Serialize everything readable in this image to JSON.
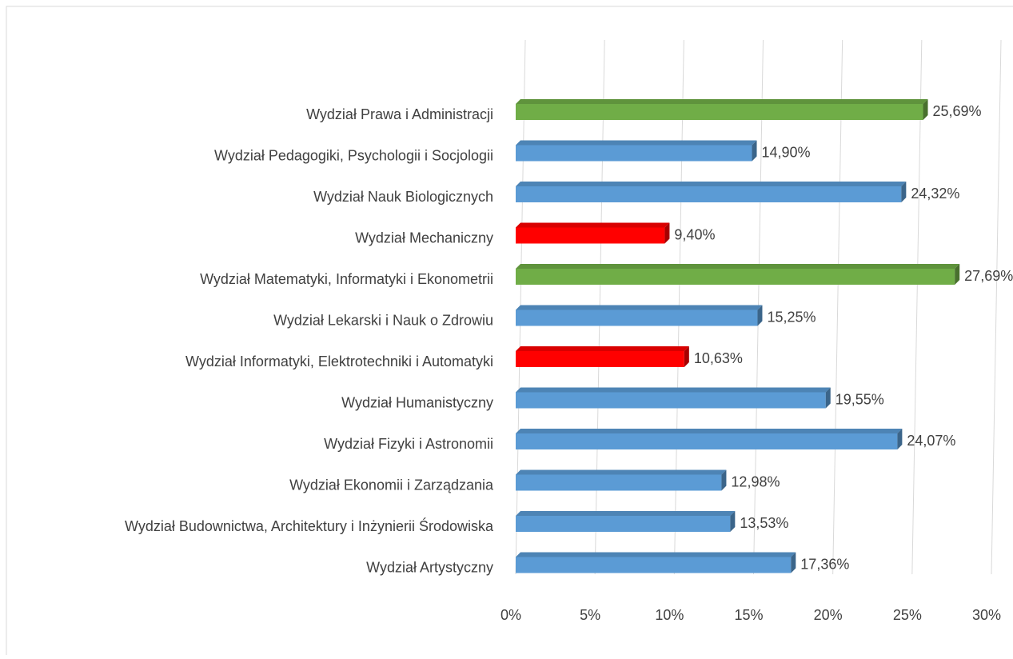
{
  "chart_data": {
    "type": "bar",
    "orientation": "horizontal",
    "categories": [
      "Wydział Prawa i Administracji",
      "Wydział Pedagogiki, Psychologii i Socjologii",
      "Wydział Nauk Biologicznych",
      "Wydział Mechaniczny",
      "Wydział Matematyki, Informatyki i Ekonometrii",
      "Wydział Lekarski i Nauk o Zdrowiu",
      "Wydział Informatyki, Elektrotechniki i Automatyki",
      "Wydział Humanistyczny",
      "Wydział Fizyki i Astronomii",
      "Wydział Ekonomii i Zarządzania",
      "Wydział Budownictwa, Architektury i Inżynierii Środowiska",
      "Wydział Artystyczny"
    ],
    "values": [
      25.69,
      14.9,
      24.32,
      9.4,
      27.69,
      15.25,
      10.63,
      19.55,
      24.07,
      12.98,
      13.53,
      17.36
    ],
    "value_labels": [
      "25,69%",
      "14,90%",
      "24,32%",
      "9,40%",
      "27,69%",
      "15,25%",
      "10,63%",
      "19,55%",
      "24,07%",
      "12,98%",
      "13,53%",
      "17,36%"
    ],
    "colors": [
      "#70ad47",
      "#5b9bd5",
      "#5b9bd5",
      "#ff0000",
      "#70ad47",
      "#5b9bd5",
      "#ff0000",
      "#5b9bd5",
      "#5b9bd5",
      "#5b9bd5",
      "#5b9bd5",
      "#5b9bd5"
    ],
    "xlim": [
      0,
      30
    ],
    "xticks": [
      {
        "value": 0,
        "label": "0%"
      },
      {
        "value": 5,
        "label": "5%"
      },
      {
        "value": 10,
        "label": "10%"
      },
      {
        "value": 15,
        "label": "15%"
      },
      {
        "value": 20,
        "label": "20%"
      },
      {
        "value": 25,
        "label": "25%"
      },
      {
        "value": 30,
        "label": "30%"
      }
    ],
    "grid": true
  }
}
